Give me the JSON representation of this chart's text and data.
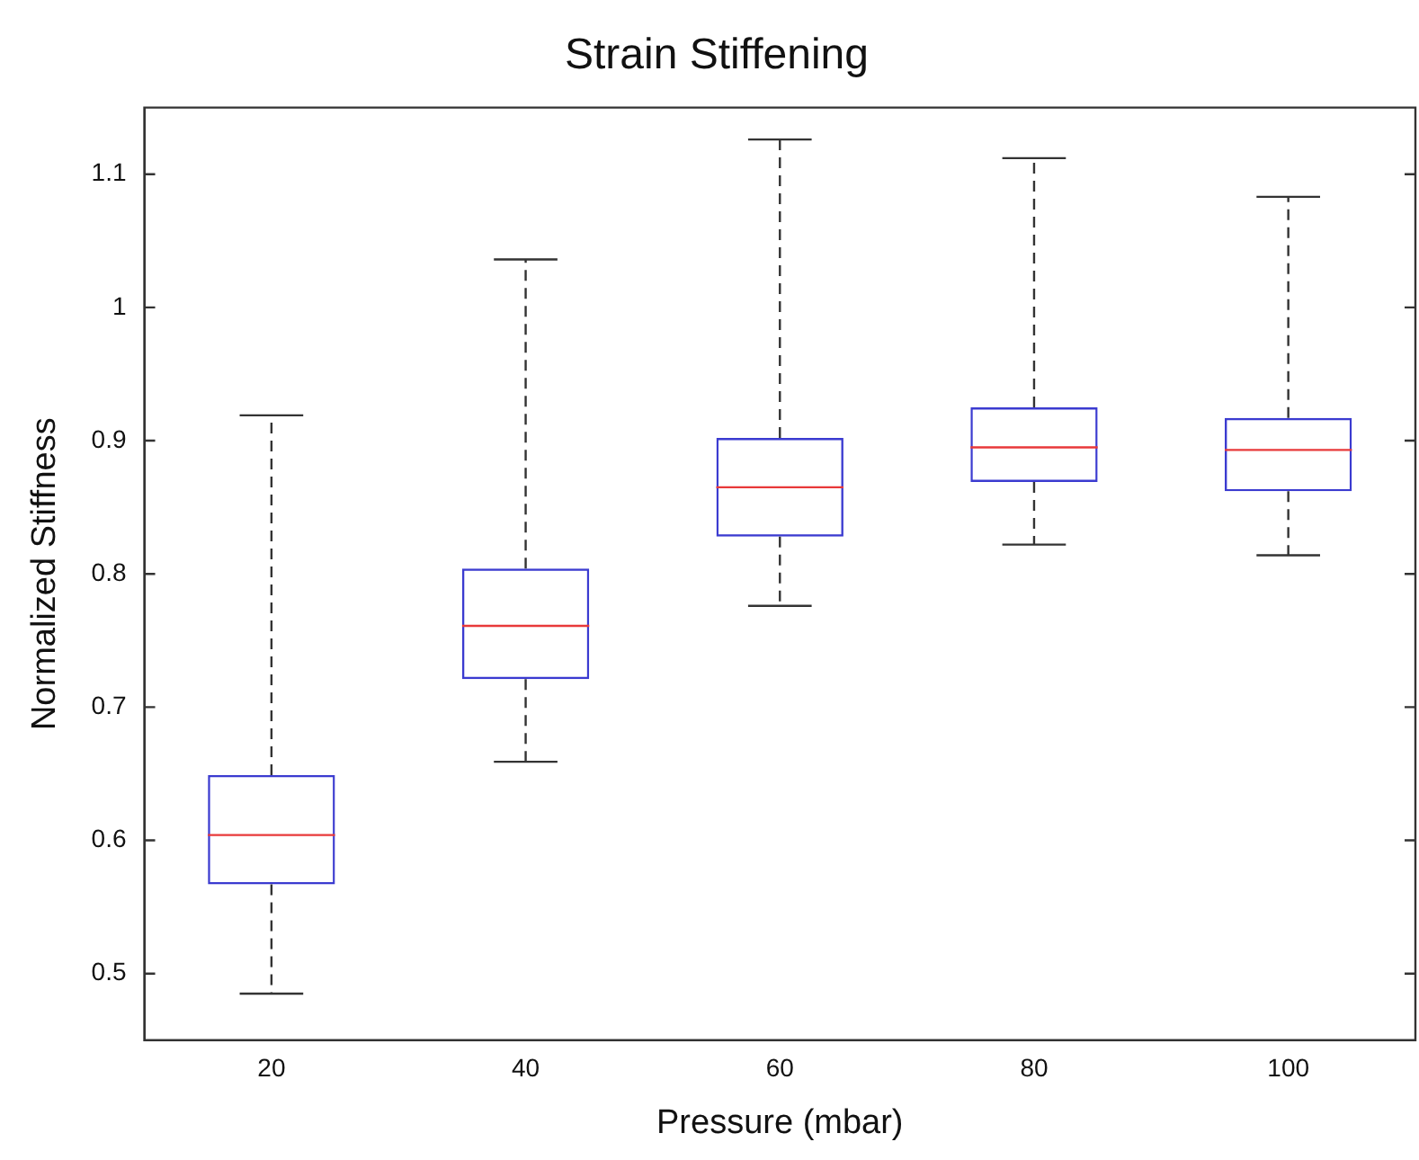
{
  "chart_data": {
    "type": "box",
    "title": "Strain Stiffening",
    "xlabel": "Pressure (mbar)",
    "ylabel": "Normalized Stiffness",
    "categories": [
      "20",
      "40",
      "60",
      "80",
      "100"
    ],
    "color": "#3b3bd0",
    "boxes": [
      {
        "low": 0.485,
        "q1": 0.567,
        "median": 0.604,
        "q3": 0.649,
        "high": 0.919
      },
      {
        "low": 0.659,
        "q1": 0.721,
        "median": 0.761,
        "q3": 0.804,
        "high": 1.036
      },
      {
        "low": 0.776,
        "q1": 0.828,
        "median": 0.865,
        "q3": 0.902,
        "high": 1.126
      },
      {
        "low": 0.822,
        "q1": 0.869,
        "median": 0.895,
        "q3": 0.925,
        "high": 1.112
      },
      {
        "low": 0.814,
        "q1": 0.862,
        "median": 0.893,
        "q3": 0.917,
        "high": 1.083
      }
    ],
    "ylim": [
      0.45,
      1.15
    ],
    "yticks": [
      0.5,
      0.6,
      0.7,
      0.8,
      0.9,
      1,
      1.1
    ],
    "grid": false,
    "legend": false
  }
}
